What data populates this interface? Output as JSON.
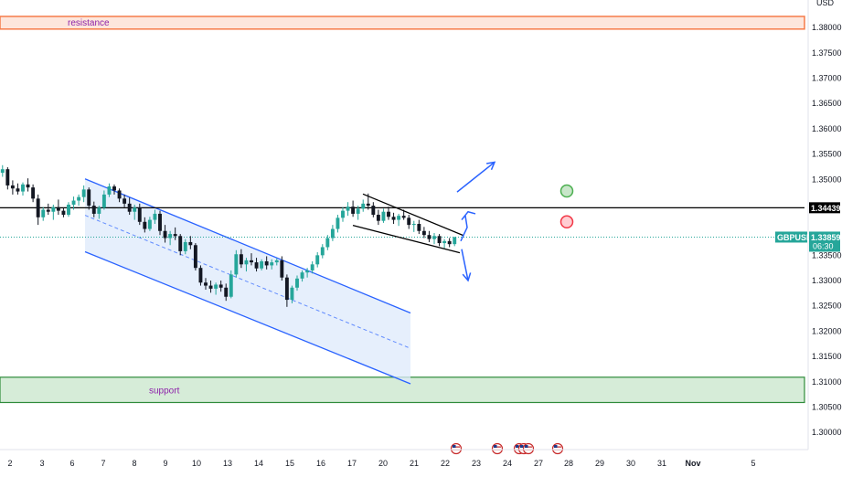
{
  "header": {
    "currency": "USD"
  },
  "chart_data": {
    "type": "candlestick",
    "symbol": "GBPUSD",
    "ylim": [
      1.2975,
      1.384
    ],
    "y_ticks": [
      "1.38000",
      "1.37500",
      "1.37000",
      "1.36500",
      "1.36000",
      "1.35500",
      "1.35000",
      "1.34500",
      "1.34000",
      "1.33500",
      "1.33000",
      "1.32500",
      "1.32000",
      "1.31500",
      "1.31000",
      "1.30500",
      "1.30000"
    ],
    "x_ticks": [
      "2",
      "3",
      "6",
      "7",
      "8",
      "9",
      "10",
      "13",
      "14",
      "15",
      "16",
      "17",
      "20",
      "21",
      "22",
      "23",
      "24",
      "27",
      "28",
      "29",
      "30",
      "31",
      "Nov",
      "5"
    ],
    "zones": {
      "resistance": {
        "label": "resistance",
        "low": 1.3797,
        "high": 1.3822,
        "color": "#f57c4a"
      },
      "support": {
        "label": "support",
        "low": 1.3059,
        "high": 1.3109,
        "color": "#2e8b3a"
      }
    },
    "horizontal_line": {
      "value": 1.34439,
      "label": "1.34439",
      "color": "#000000"
    },
    "current_price": {
      "symbol": "GBPUSD",
      "value": 1.33859,
      "label": "1.33859",
      "countdown": "06:30",
      "color": "#26a69a"
    },
    "channel": {
      "upper": [
        [
          "6",
          1.3501
        ],
        [
          "23",
          1.3236
        ]
      ],
      "lower": [
        [
          "6",
          1.3357
        ],
        [
          "23",
          1.3096
        ]
      ],
      "mid": [
        [
          "6",
          1.3429
        ],
        [
          "23",
          1.3166
        ]
      ],
      "fill": "#dde9fb",
      "stroke": "#2962ff"
    },
    "wedge": {
      "upper": [
        [
          "17",
          1.3471
        ],
        [
          "22",
          1.3389
        ]
      ],
      "lower": [
        [
          "16",
          1.3409
        ],
        [
          "22",
          1.3355
        ]
      ]
    },
    "arrows": [
      {
        "from": [
          "22",
          1.3475
        ],
        "to": [
          "23",
          1.3534
        ],
        "direction": "up"
      },
      {
        "from": [
          "22",
          1.336
        ],
        "to": [
          "22",
          1.3428
        ],
        "direction": "up-short"
      },
      {
        "from": [
          "22",
          1.3362
        ],
        "to": [
          "22",
          1.33
        ],
        "direction": "down"
      }
    ],
    "signals": [
      {
        "kind": "target",
        "color": "#4caf50",
        "date": "28",
        "price": 1.3477
      },
      {
        "kind": "stop",
        "color": "#f23645",
        "date": "28",
        "price": 1.3416
      }
    ],
    "event_markers": [
      "22",
      "24",
      "27",
      "28"
    ],
    "series": [
      {
        "values": [
          [
            1.3513,
            1.3528,
            1.3505,
            1.352
          ],
          [
            1.352,
            1.3524,
            1.348,
            1.3488
          ],
          [
            1.3488,
            1.3498,
            1.347,
            1.3482
          ],
          [
            1.3482,
            1.3492,
            1.347,
            1.3476
          ],
          [
            1.3476,
            1.3494,
            1.3468,
            1.349
          ],
          [
            1.349,
            1.3502,
            1.3476,
            1.3484
          ],
          [
            1.3484,
            1.349,
            1.3455,
            1.3462
          ],
          [
            1.3462,
            1.347,
            1.341,
            1.3425
          ],
          [
            1.3425,
            1.3445,
            1.3418,
            1.344
          ],
          [
            1.344,
            1.3452,
            1.343,
            1.3436
          ],
          [
            1.3436,
            1.345,
            1.342,
            1.3445
          ],
          [
            1.3445,
            1.346,
            1.343,
            1.3438
          ],
          [
            1.3438,
            1.3444,
            1.3425,
            1.343
          ],
          [
            1.343,
            1.3455,
            1.3426,
            1.345
          ],
          [
            1.345,
            1.3466,
            1.344,
            1.3458
          ],
          [
            1.3458,
            1.347,
            1.3448,
            1.3465
          ],
          [
            1.3465,
            1.3488,
            1.3455,
            1.348
          ],
          [
            1.348,
            1.3484,
            1.344,
            1.3448
          ],
          [
            1.3448,
            1.3456,
            1.3425,
            1.3432
          ],
          [
            1.3432,
            1.3448,
            1.3422,
            1.3444
          ],
          [
            1.3444,
            1.3478,
            1.344,
            1.347
          ],
          [
            1.347,
            1.3492,
            1.3465,
            1.3486
          ],
          [
            1.3486,
            1.349,
            1.347,
            1.3478
          ],
          [
            1.3478,
            1.3482,
            1.3455,
            1.3462
          ],
          [
            1.3462,
            1.347,
            1.3445,
            1.3452
          ],
          [
            1.3452,
            1.3464,
            1.343,
            1.3436
          ],
          [
            1.3436,
            1.345,
            1.342,
            1.3444
          ],
          [
            1.3444,
            1.3452,
            1.341,
            1.3416
          ],
          [
            1.3416,
            1.3425,
            1.3395,
            1.3402
          ],
          [
            1.3402,
            1.3426,
            1.3398,
            1.342
          ],
          [
            1.342,
            1.344,
            1.3412,
            1.3432
          ],
          [
            1.3432,
            1.3438,
            1.339,
            1.3398
          ],
          [
            1.3398,
            1.341,
            1.3375,
            1.3384
          ],
          [
            1.3384,
            1.3398,
            1.337,
            1.3392
          ],
          [
            1.3392,
            1.3405,
            1.338,
            1.3388
          ],
          [
            1.3388,
            1.3392,
            1.335,
            1.3358
          ],
          [
            1.3358,
            1.3382,
            1.3352,
            1.3376
          ],
          [
            1.3376,
            1.3388,
            1.3362,
            1.337
          ],
          [
            1.337,
            1.3374,
            1.332,
            1.3325
          ],
          [
            1.3325,
            1.333,
            1.329,
            1.3296
          ],
          [
            1.3296,
            1.3305,
            1.3282,
            1.329
          ],
          [
            1.329,
            1.33,
            1.3276,
            1.3284
          ],
          [
            1.3284,
            1.3296,
            1.3272,
            1.3292
          ],
          [
            1.3292,
            1.33,
            1.3278,
            1.3286
          ],
          [
            1.3286,
            1.3294,
            1.326,
            1.3268
          ],
          [
            1.3268,
            1.332,
            1.3265,
            1.3312
          ],
          [
            1.3312,
            1.336,
            1.3306,
            1.3352
          ],
          [
            1.3352,
            1.3362,
            1.3325,
            1.3332
          ],
          [
            1.3332,
            1.3345,
            1.3318,
            1.334
          ],
          [
            1.334,
            1.3354,
            1.333,
            1.3336
          ],
          [
            1.3336,
            1.3345,
            1.3318,
            1.3324
          ],
          [
            1.3324,
            1.3342,
            1.332,
            1.3338
          ],
          [
            1.3338,
            1.3348,
            1.3322,
            1.333
          ],
          [
            1.333,
            1.3342,
            1.3322,
            1.3336
          ],
          [
            1.3336,
            1.3344,
            1.333,
            1.334
          ],
          [
            1.334,
            1.3348,
            1.33,
            1.3306
          ],
          [
            1.3306,
            1.3312,
            1.3248,
            1.3262
          ],
          [
            1.3262,
            1.329,
            1.3255,
            1.3286
          ],
          [
            1.3286,
            1.331,
            1.328,
            1.3304
          ],
          [
            1.3304,
            1.332,
            1.3298,
            1.3316
          ],
          [
            1.3316,
            1.3325,
            1.3306,
            1.332
          ],
          [
            1.332,
            1.3338,
            1.3314,
            1.3332
          ],
          [
            1.3332,
            1.3356,
            1.3326,
            1.335
          ],
          [
            1.335,
            1.3372,
            1.3344,
            1.3366
          ],
          [
            1.3366,
            1.339,
            1.336,
            1.3384
          ],
          [
            1.3384,
            1.341,
            1.3378,
            1.3402
          ],
          [
            1.3402,
            1.343,
            1.3395,
            1.3424
          ],
          [
            1.3424,
            1.3445,
            1.3416,
            1.3438
          ],
          [
            1.3438,
            1.3455,
            1.3428,
            1.3446
          ],
          [
            1.3446,
            1.3458,
            1.3426,
            1.3432
          ],
          [
            1.3432,
            1.3448,
            1.342,
            1.3442
          ],
          [
            1.3442,
            1.346,
            1.3436,
            1.3452
          ],
          [
            1.3452,
            1.3472,
            1.344,
            1.3448
          ],
          [
            1.3448,
            1.3455,
            1.3425,
            1.343
          ],
          [
            1.343,
            1.344,
            1.341,
            1.3418
          ],
          [
            1.3418,
            1.3442,
            1.3414,
            1.3436
          ],
          [
            1.3436,
            1.3446,
            1.342,
            1.3426
          ],
          [
            1.3426,
            1.3434,
            1.3412,
            1.342
          ],
          [
            1.342,
            1.3432,
            1.3408,
            1.3428
          ],
          [
            1.3428,
            1.344,
            1.342,
            1.3424
          ],
          [
            1.3424,
            1.343,
            1.3402,
            1.341
          ],
          [
            1.341,
            1.3418,
            1.3396,
            1.3412
          ],
          [
            1.3412,
            1.342,
            1.3392,
            1.3398
          ],
          [
            1.3398,
            1.3406,
            1.3384,
            1.339
          ],
          [
            1.339,
            1.3398,
            1.3376,
            1.3382
          ],
          [
            1.3382,
            1.3394,
            1.3372,
            1.3388
          ],
          [
            1.3388,
            1.3392,
            1.3368,
            1.3374
          ],
          [
            1.3374,
            1.3382,
            1.3364,
            1.3378
          ],
          [
            1.3378,
            1.3384,
            1.3366,
            1.3372
          ],
          [
            1.3372,
            1.3386,
            1.3368,
            1.3386
          ]
        ]
      }
    ]
  }
}
